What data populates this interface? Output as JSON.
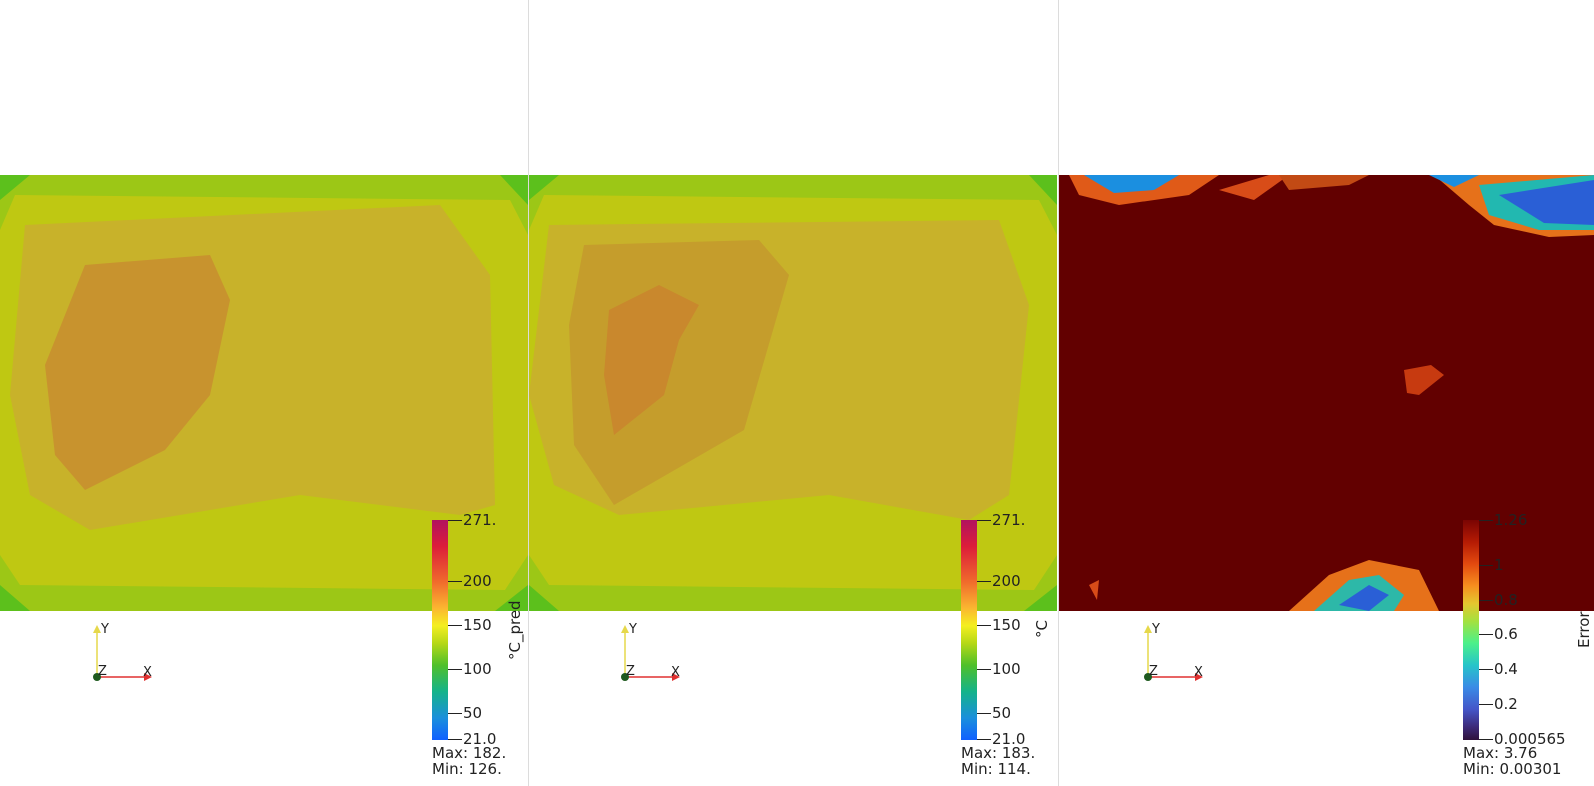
{
  "views": [
    {
      "id": "predicted",
      "colorbar": {
        "title": "°C_pred",
        "ticks": [
          "271.",
          "200",
          "150",
          "100",
          "50",
          "21.0"
        ],
        "palette": "jet-rainbow",
        "range": [
          21.0,
          271.0
        ]
      },
      "stats": {
        "max": "Max: 182.",
        "min": "Min: 126."
      },
      "axes": {
        "x": "X",
        "y": "Y",
        "z": "Z"
      }
    },
    {
      "id": "ground-truth",
      "colorbar": {
        "title": "°C",
        "ticks": [
          "271.",
          "200",
          "150",
          "100",
          "50",
          "21.0"
        ],
        "palette": "jet-rainbow",
        "range": [
          21.0,
          271.0
        ]
      },
      "stats": {
        "max": "Max: 183.",
        "min": "Min: 114."
      },
      "axes": {
        "x": "X",
        "y": "Y",
        "z": "Z"
      }
    },
    {
      "id": "error",
      "colorbar": {
        "title": "Error",
        "ticks": [
          "1.26",
          "1",
          "0.8",
          "0.6",
          "0.4",
          "0.2",
          "0.000565"
        ],
        "palette": "turbo-dark",
        "range": [
          0.000565,
          1.26
        ]
      },
      "stats": {
        "max": "Max: 3.76",
        "min": "Min: 0.00301"
      },
      "axes": {
        "x": "X",
        "y": "Y",
        "z": "Z"
      }
    }
  ],
  "colors": {
    "field_green": "#4fbf1e",
    "field_lime": "#b9cc14",
    "field_olive": "#c8b22a",
    "field_orange": "#c9892c",
    "error_dark": "#620000",
    "axis_x": "#e03030",
    "axis_y": "#e6d84a",
    "axis_origin": "#1f5a1f"
  }
}
